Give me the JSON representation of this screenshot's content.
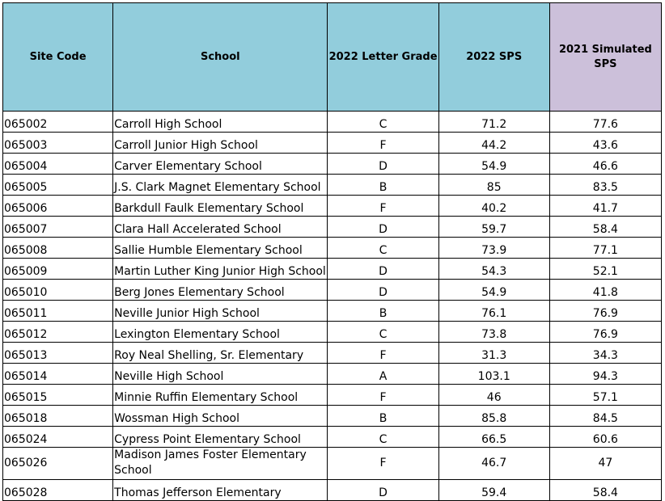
{
  "headers": {
    "site_code": "Site Code",
    "school": "School",
    "letter_grade": "2022 Letter Grade",
    "sps_2022": "2022 SPS",
    "sps_2021": "2021 Simulated SPS"
  },
  "rows": [
    {
      "code": "065002",
      "school": "Carroll High School",
      "grade": "C",
      "sps2022": "71.2",
      "sps2021": "77.6"
    },
    {
      "code": "065003",
      "school": "Carroll Junior High School",
      "grade": "F",
      "sps2022": "44.2",
      "sps2021": "43.6"
    },
    {
      "code": "065004",
      "school": "Carver Elementary School",
      "grade": "D",
      "sps2022": "54.9",
      "sps2021": "46.6"
    },
    {
      "code": "065005",
      "school": "J.S. Clark Magnet Elementary School",
      "grade": "B",
      "sps2022": "85",
      "sps2021": "83.5"
    },
    {
      "code": "065006",
      "school": "Barkdull Faulk Elementary School",
      "grade": "F",
      "sps2022": "40.2",
      "sps2021": "41.7"
    },
    {
      "code": "065007",
      "school": "Clara Hall Accelerated School",
      "grade": "D",
      "sps2022": "59.7",
      "sps2021": "58.4"
    },
    {
      "code": "065008",
      "school": "Sallie Humble Elementary School",
      "grade": "C",
      "sps2022": "73.9",
      "sps2021": "77.1"
    },
    {
      "code": "065009",
      "school": "Martin Luther King Junior High School",
      "grade": "D",
      "sps2022": "54.3",
      "sps2021": "52.1"
    },
    {
      "code": "065010",
      "school": "Berg Jones Elementary School",
      "grade": "D",
      "sps2022": "54.9",
      "sps2021": "41.8"
    },
    {
      "code": "065011",
      "school": "Neville Junior High School",
      "grade": "B",
      "sps2022": "76.1",
      "sps2021": "76.9"
    },
    {
      "code": "065012",
      "school": "Lexington Elementary School",
      "grade": "C",
      "sps2022": "73.8",
      "sps2021": "76.9"
    },
    {
      "code": "065013",
      "school": "Roy Neal Shelling, Sr. Elementary",
      "grade": "F",
      "sps2022": "31.3",
      "sps2021": "34.3"
    },
    {
      "code": "065014",
      "school": "Neville High School",
      "grade": "A",
      "sps2022": "103.1",
      "sps2021": "94.3"
    },
    {
      "code": "065015",
      "school": "Minnie Ruffin Elementary School",
      "grade": "F",
      "sps2022": "46",
      "sps2021": "57.1"
    },
    {
      "code": "065018",
      "school": "Wossman High School",
      "grade": "B",
      "sps2022": "85.8",
      "sps2021": "84.5"
    },
    {
      "code": "065024",
      "school": "Cypress Point Elementary School",
      "grade": "C",
      "sps2022": "66.5",
      "sps2021": "60.6"
    },
    {
      "code": "065026",
      "school": "Madison James Foster Elementary School",
      "grade": "F",
      "sps2022": "46.7",
      "sps2021": "47"
    },
    {
      "code": "065028",
      "school": "Thomas Jefferson Elementary",
      "grade": "D",
      "sps2022": "59.4",
      "sps2021": "58.4"
    }
  ]
}
